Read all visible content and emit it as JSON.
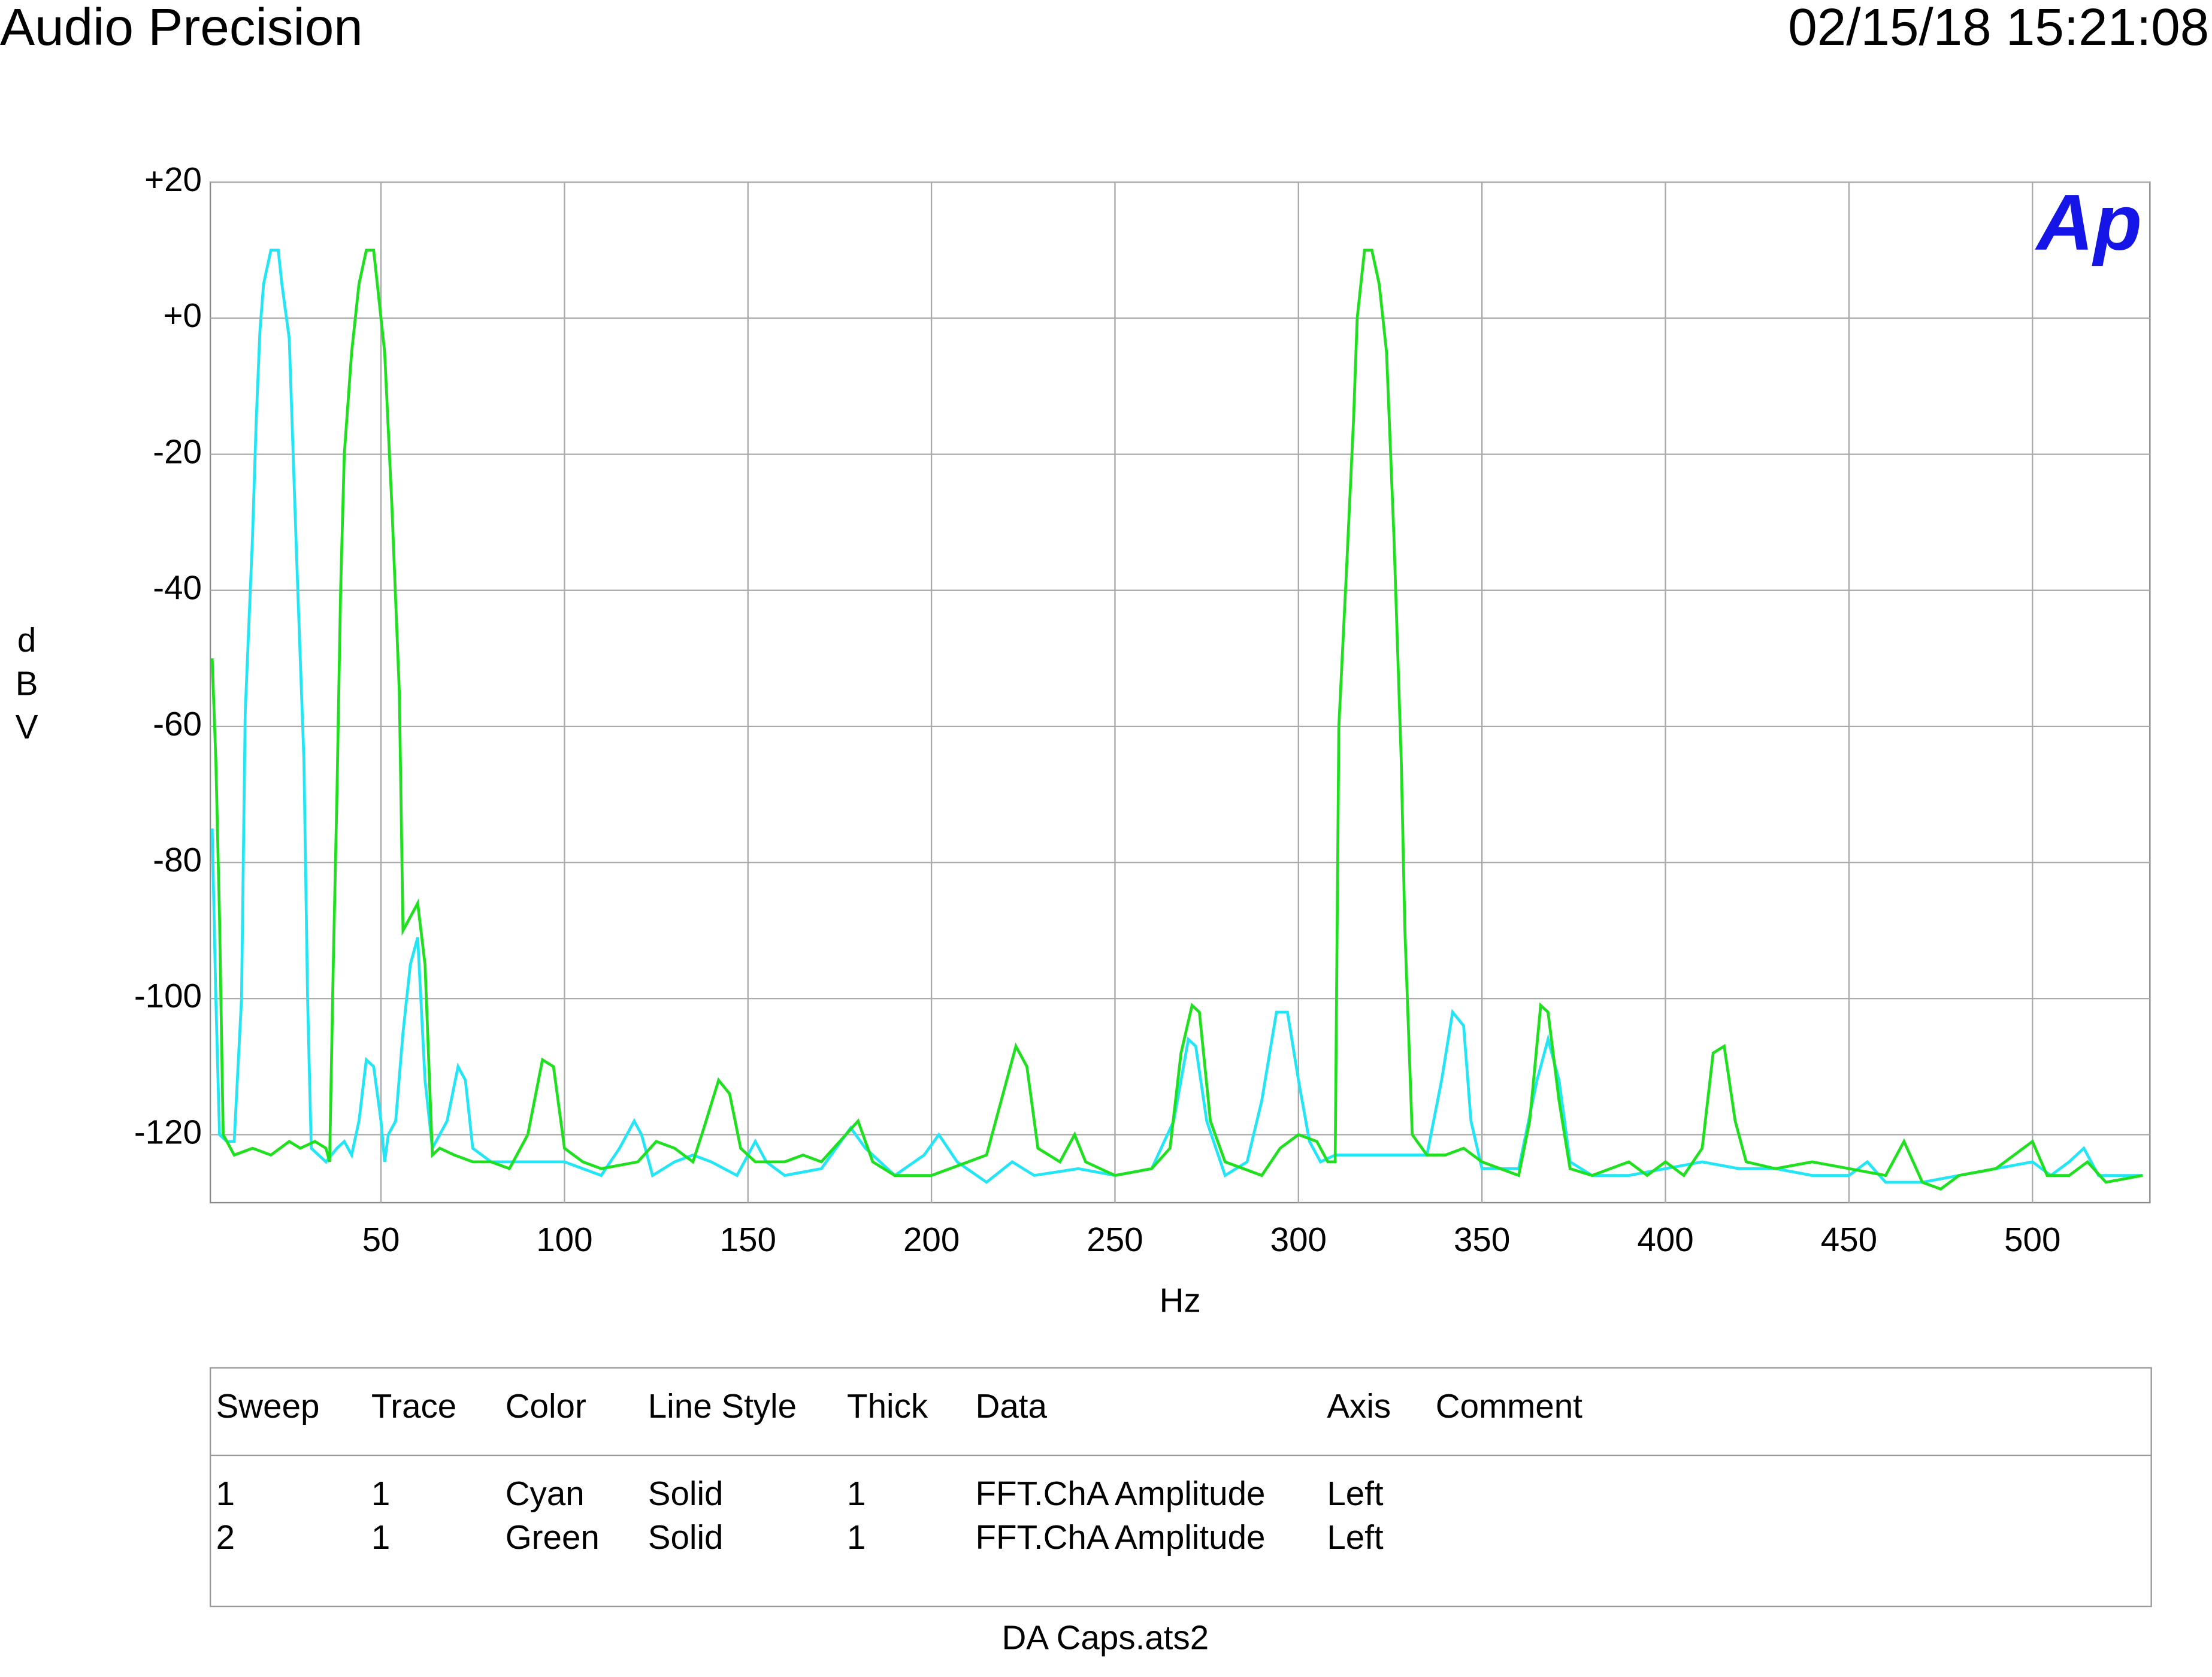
{
  "header": {
    "title": "Audio Precision",
    "timestamp": "02/15/18 15:21:08"
  },
  "logo": "Ap",
  "chart_data": {
    "type": "line",
    "x_label": "Hz",
    "y_label": "dBV",
    "xlim": [
      3.5,
      532
    ],
    "ylim": [
      -130,
      20
    ],
    "xticks": [
      50,
      100,
      150,
      200,
      250,
      300,
      350,
      400,
      450,
      500
    ],
    "yticks": [
      {
        "value": 20,
        "label": "+20"
      },
      {
        "value": 0,
        "label": "+0"
      },
      -20,
      -40,
      -60,
      -80,
      -100,
      -120
    ],
    "grid": true,
    "series": [
      {
        "name": "Cyan",
        "color": "#22e5f5",
        "x": [
          4,
          5,
          6,
          8,
          10,
          12,
          13,
          15,
          16,
          17,
          18,
          20,
          22,
          23,
          25,
          27,
          29,
          30,
          31,
          33,
          35,
          38,
          40,
          42,
          44,
          46,
          48,
          50,
          51,
          52,
          54,
          56,
          58,
          60,
          62,
          64,
          68,
          71,
          73,
          75,
          80,
          90,
          100,
          110,
          115,
          119,
          121,
          124,
          130,
          135,
          140,
          147,
          152,
          155,
          160,
          170,
          178,
          182,
          190,
          198,
          202,
          207,
          215,
          222,
          228,
          240,
          250,
          260,
          266,
          270,
          272,
          275,
          280,
          286,
          290,
          294,
          297,
          300,
          303,
          306,
          310,
          320,
          330,
          335,
          339,
          342,
          345,
          347,
          350,
          360,
          365,
          368,
          371,
          374,
          380,
          390,
          400,
          410,
          420,
          430,
          440,
          450,
          455,
          460,
          470,
          480,
          490,
          500,
          505,
          510,
          514,
          518,
          525,
          530
        ],
        "values": [
          -75,
          -100,
          -120,
          -121,
          -121,
          -100,
          -58,
          -32,
          -15,
          -2,
          5,
          10,
          10,
          5,
          -3,
          -35,
          -65,
          -100,
          -122,
          -123,
          -124,
          -122,
          -121,
          -123,
          -118,
          -109,
          -110,
          -118,
          -124,
          -120,
          -118,
          -105,
          -95,
          -91,
          -112,
          -122,
          -118,
          -110,
          -112,
          -122,
          -124,
          -124,
          -124,
          -126,
          -122,
          -118,
          -120,
          -126,
          -124,
          -123,
          -124,
          -126,
          -121,
          -124,
          -126,
          -125,
          -119,
          -122,
          -126,
          -123,
          -120,
          -124,
          -127,
          -124,
          -126,
          -125,
          -126,
          -125,
          -118,
          -106,
          -107,
          -118,
          -126,
          -124,
          -115,
          -102,
          -102,
          -112,
          -121,
          -124,
          -123,
          -123,
          -123,
          -123,
          -112,
          -102,
          -104,
          -118,
          -125,
          -125,
          -112,
          -106,
          -112,
          -124,
          -126,
          -126,
          -125,
          -124,
          -125,
          -125,
          -126,
          -126,
          -124,
          -127,
          -127,
          -126,
          -125,
          -124,
          -126,
          -124,
          -122,
          -126,
          -126,
          -126
        ]
      },
      {
        "name": "Green",
        "color": "#1ee01e",
        "x": [
          4,
          5,
          6,
          7,
          10,
          15,
          20,
          25,
          28,
          32,
          35,
          36,
          37,
          38,
          39,
          40,
          42,
          44,
          46,
          48,
          49,
          51,
          53,
          55,
          56,
          58,
          60,
          62,
          64,
          66,
          70,
          75,
          80,
          85,
          90,
          94,
          97,
          100,
          105,
          110,
          120,
          125,
          130,
          135,
          138,
          142,
          145,
          148,
          152,
          160,
          165,
          170,
          175,
          180,
          184,
          190,
          200,
          210,
          215,
          220,
          223,
          226,
          229,
          235,
          239,
          242,
          250,
          260,
          265,
          268,
          271,
          273,
          276,
          280,
          285,
          290,
          295,
          300,
          305,
          308,
          310,
          311,
          313,
          315,
          316,
          318,
          320,
          322,
          324,
          326,
          328,
          329,
          331,
          335,
          340,
          345,
          350,
          360,
          363,
          366,
          368,
          371,
          374,
          380,
          390,
          395,
          400,
          405,
          410,
          413,
          416,
          419,
          422,
          430,
          440,
          450,
          460,
          465,
          470,
          475,
          480,
          490,
          495,
          500,
          504,
          510,
          515,
          520,
          530
        ],
        "values": [
          -50,
          -65,
          -88,
          -120,
          -123,
          -122,
          -123,
          -121,
          -122,
          -121,
          -122,
          -124,
          -95,
          -70,
          -40,
          -20,
          -5,
          5,
          10,
          10,
          5,
          -5,
          -28,
          -55,
          -90,
          -88,
          -86,
          -95,
          -123,
          -122,
          -123,
          -124,
          -124,
          -125,
          -120,
          -109,
          -110,
          -122,
          -124,
          -125,
          -124,
          -121,
          -122,
          -124,
          -119,
          -112,
          -114,
          -122,
          -124,
          -124,
          -123,
          -124,
          -121,
          -118,
          -124,
          -126,
          -126,
          -124,
          -123,
          -113,
          -107,
          -110,
          -122,
          -124,
          -120,
          -124,
          -126,
          -125,
          -122,
          -108,
          -101,
          -102,
          -118,
          -124,
          -125,
          -126,
          -122,
          -120,
          -121,
          -124,
          -124,
          -60,
          -38,
          -15,
          0,
          10,
          10,
          5,
          -5,
          -32,
          -65,
          -90,
          -120,
          -123,
          -123,
          -122,
          -124,
          -126,
          -118,
          -101,
          -102,
          -115,
          -125,
          -126,
          -124,
          -126,
          -124,
          -126,
          -122,
          -108,
          -107,
          -118,
          -124,
          -125,
          -124,
          -125,
          -126,
          -121,
          -127,
          -128,
          -126,
          -125,
          -123,
          -121,
          -126,
          -126,
          -124,
          -127,
          -126
        ]
      }
    ]
  },
  "table": {
    "columns": [
      "Sweep",
      "Trace",
      "Color",
      "Line Style",
      "Thick",
      "Data",
      "Axis",
      "Comment"
    ],
    "rows": [
      [
        "1",
        "1",
        "Cyan",
        "Solid",
        "1",
        "FFT.ChA Amplitude",
        "Left"
      ],
      [
        "2",
        "1",
        "Green",
        "Solid",
        "1",
        "FFT.ChA Amplitude",
        "Left"
      ]
    ]
  },
  "footer": "DA Caps.ats2"
}
